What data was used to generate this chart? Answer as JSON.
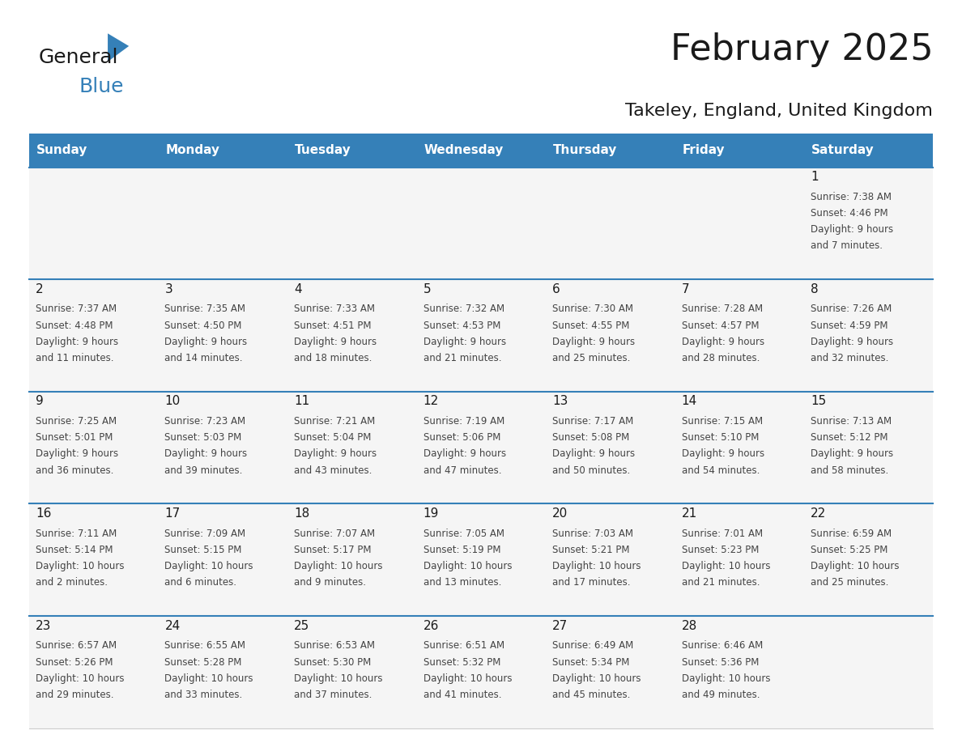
{
  "title": "February 2025",
  "subtitle": "Takeley, England, United Kingdom",
  "days_of_week": [
    "Sunday",
    "Monday",
    "Tuesday",
    "Wednesday",
    "Thursday",
    "Friday",
    "Saturday"
  ],
  "header_bg": "#3580b8",
  "header_text_color": "#ffffff",
  "cell_bg_odd": "#f0f0f0",
  "cell_bg_even": "#ffffff",
  "cell_text_color": "#333333",
  "day_num_color": "#1a1a1a",
  "separator_color": "#3580b8",
  "calendar_data": [
    [
      null,
      null,
      null,
      null,
      null,
      null,
      {
        "day": 1,
        "sunrise": "7:38 AM",
        "sunset": "4:46 PM",
        "daylight": "9 hours and 7 minutes."
      }
    ],
    [
      {
        "day": 2,
        "sunrise": "7:37 AM",
        "sunset": "4:48 PM",
        "daylight": "9 hours and 11 minutes."
      },
      {
        "day": 3,
        "sunrise": "7:35 AM",
        "sunset": "4:50 PM",
        "daylight": "9 hours and 14 minutes."
      },
      {
        "day": 4,
        "sunrise": "7:33 AM",
        "sunset": "4:51 PM",
        "daylight": "9 hours and 18 minutes."
      },
      {
        "day": 5,
        "sunrise": "7:32 AM",
        "sunset": "4:53 PM",
        "daylight": "9 hours and 21 minutes."
      },
      {
        "day": 6,
        "sunrise": "7:30 AM",
        "sunset": "4:55 PM",
        "daylight": "9 hours and 25 minutes."
      },
      {
        "day": 7,
        "sunrise": "7:28 AM",
        "sunset": "4:57 PM",
        "daylight": "9 hours and 28 minutes."
      },
      {
        "day": 8,
        "sunrise": "7:26 AM",
        "sunset": "4:59 PM",
        "daylight": "9 hours and 32 minutes."
      }
    ],
    [
      {
        "day": 9,
        "sunrise": "7:25 AM",
        "sunset": "5:01 PM",
        "daylight": "9 hours and 36 minutes."
      },
      {
        "day": 10,
        "sunrise": "7:23 AM",
        "sunset": "5:03 PM",
        "daylight": "9 hours and 39 minutes."
      },
      {
        "day": 11,
        "sunrise": "7:21 AM",
        "sunset": "5:04 PM",
        "daylight": "9 hours and 43 minutes."
      },
      {
        "day": 12,
        "sunrise": "7:19 AM",
        "sunset": "5:06 PM",
        "daylight": "9 hours and 47 minutes."
      },
      {
        "day": 13,
        "sunrise": "7:17 AM",
        "sunset": "5:08 PM",
        "daylight": "9 hours and 50 minutes."
      },
      {
        "day": 14,
        "sunrise": "7:15 AM",
        "sunset": "5:10 PM",
        "daylight": "9 hours and 54 minutes."
      },
      {
        "day": 15,
        "sunrise": "7:13 AM",
        "sunset": "5:12 PM",
        "daylight": "9 hours and 58 minutes."
      }
    ],
    [
      {
        "day": 16,
        "sunrise": "7:11 AM",
        "sunset": "5:14 PM",
        "daylight": "10 hours and 2 minutes."
      },
      {
        "day": 17,
        "sunrise": "7:09 AM",
        "sunset": "5:15 PM",
        "daylight": "10 hours and 6 minutes."
      },
      {
        "day": 18,
        "sunrise": "7:07 AM",
        "sunset": "5:17 PM",
        "daylight": "10 hours and 9 minutes."
      },
      {
        "day": 19,
        "sunrise": "7:05 AM",
        "sunset": "5:19 PM",
        "daylight": "10 hours and 13 minutes."
      },
      {
        "day": 20,
        "sunrise": "7:03 AM",
        "sunset": "5:21 PM",
        "daylight": "10 hours and 17 minutes."
      },
      {
        "day": 21,
        "sunrise": "7:01 AM",
        "sunset": "5:23 PM",
        "daylight": "10 hours and 21 minutes."
      },
      {
        "day": 22,
        "sunrise": "6:59 AM",
        "sunset": "5:25 PM",
        "daylight": "10 hours and 25 minutes."
      }
    ],
    [
      {
        "day": 23,
        "sunrise": "6:57 AM",
        "sunset": "5:26 PM",
        "daylight": "10 hours and 29 minutes."
      },
      {
        "day": 24,
        "sunrise": "6:55 AM",
        "sunset": "5:28 PM",
        "daylight": "10 hours and 33 minutes."
      },
      {
        "day": 25,
        "sunrise": "6:53 AM",
        "sunset": "5:30 PM",
        "daylight": "10 hours and 37 minutes."
      },
      {
        "day": 26,
        "sunrise": "6:51 AM",
        "sunset": "5:32 PM",
        "daylight": "10 hours and 41 minutes."
      },
      {
        "day": 27,
        "sunrise": "6:49 AM",
        "sunset": "5:34 PM",
        "daylight": "10 hours and 45 minutes."
      },
      {
        "day": 28,
        "sunrise": "6:46 AM",
        "sunset": "5:36 PM",
        "daylight": "10 hours and 49 minutes."
      },
      null
    ]
  ],
  "logo_text_general": "General",
  "logo_text_blue": "Blue",
  "logo_color_general": "#1a1a1a",
  "logo_color_blue": "#3580b8",
  "logo_triangle_color": "#3580b8"
}
